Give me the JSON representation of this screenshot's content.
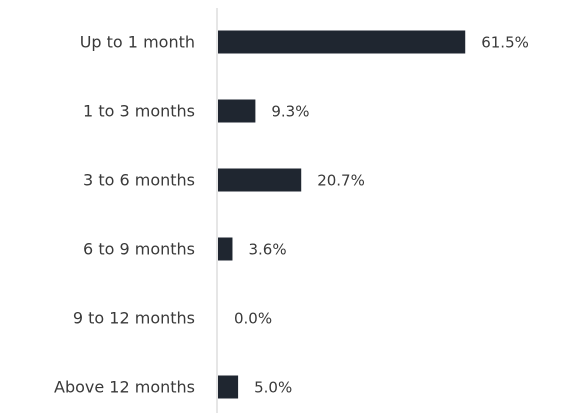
{
  "chart_data": {
    "type": "bar",
    "orientation": "horizontal",
    "categories": [
      "Up to 1 month",
      "1 to 3 months",
      "3 to 6 months",
      "6 to 9 months",
      "9 to 12 months",
      "Above 12 months"
    ],
    "values": [
      61.5,
      9.3,
      20.7,
      3.6,
      0.0,
      5.0
    ],
    "value_labels": [
      "61.5%",
      "9.3%",
      "20.7%",
      "3.6%",
      "0.0%",
      "5.0%"
    ],
    "color": "#1f2630"
  }
}
